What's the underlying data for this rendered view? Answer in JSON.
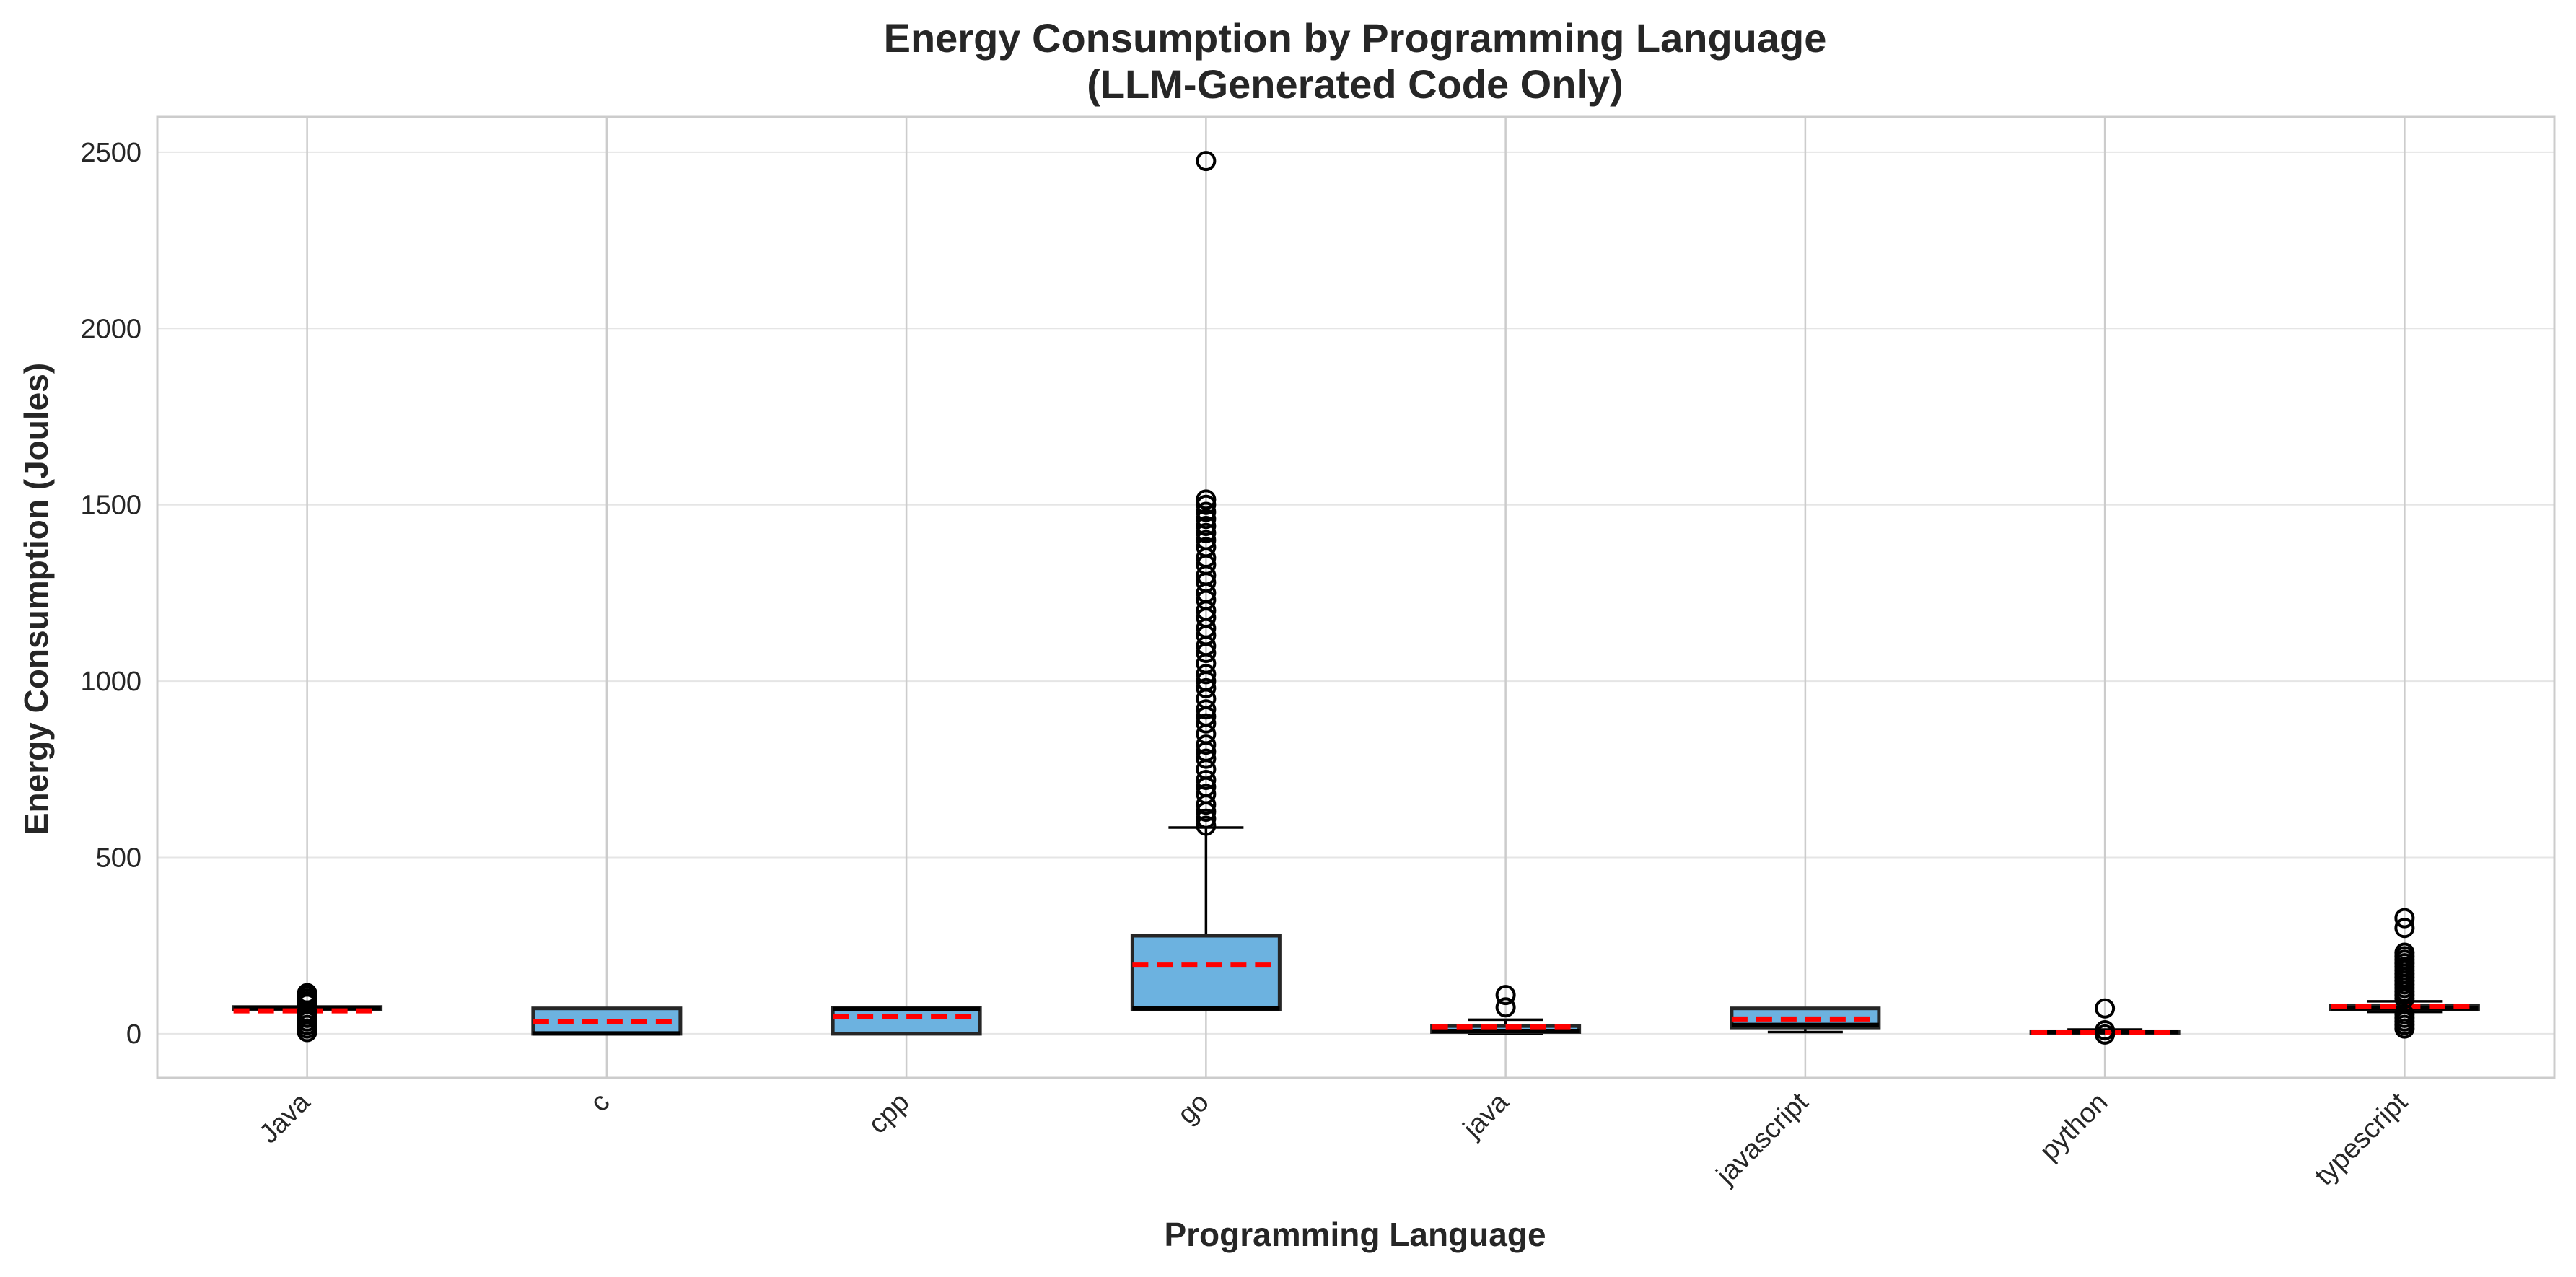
{
  "chart_data": {
    "type": "box",
    "title": [
      "Energy Consumption by Programming Language",
      "(LLM-Generated Code Only)"
    ],
    "xlabel": "Programming Language",
    "ylabel": "Energy Consumption (Joules)",
    "ylim": [
      -125,
      2600
    ],
    "yticks": [
      0,
      500,
      1000,
      1500,
      2000,
      2500
    ],
    "grid": true,
    "colors": {
      "box_fill": "#6cb2e0",
      "box_edge": "#262626",
      "mean_line": "#ff0000",
      "grid": "#e5e5e5",
      "vgrid": "#cccccc"
    },
    "categories": [
      "Java",
      "c",
      "cpp",
      "go",
      "java",
      "javascript",
      "python",
      "typescript"
    ],
    "boxes": [
      {
        "name": "Java",
        "q1": 70,
        "median": 73,
        "q3": 76,
        "mean": 65,
        "whisker_low": 70,
        "whisker_high": 76,
        "outliers": [
          5,
          15,
          25,
          35,
          45,
          55,
          62,
          85,
          92,
          100,
          108,
          115
        ]
      },
      {
        "name": "c",
        "q1": 0,
        "median": 1,
        "q3": 72,
        "mean": 35,
        "whisker_low": 0,
        "whisker_high": 72,
        "outliers": []
      },
      {
        "name": "cpp",
        "q1": 0,
        "median": 70,
        "q3": 73,
        "mean": 50,
        "whisker_low": 0,
        "whisker_high": 73,
        "outliers": []
      },
      {
        "name": "go",
        "q1": 70,
        "median": 72,
        "q3": 278,
        "mean": 195,
        "whisker_low": 70,
        "whisker_high": 585,
        "outliers": [
          590,
          610,
          630,
          650,
          680,
          700,
          720,
          750,
          780,
          800,
          820,
          850,
          880,
          900,
          920,
          950,
          980,
          1000,
          1020,
          1050,
          1080,
          1100,
          1130,
          1150,
          1180,
          1200,
          1230,
          1250,
          1280,
          1300,
          1330,
          1350,
          1380,
          1400,
          1420,
          1440,
          1460,
          1480,
          1500,
          1515,
          2475
        ]
      },
      {
        "name": "java",
        "q1": 5,
        "median": 8,
        "q3": 22,
        "mean": 20,
        "whisker_low": 0,
        "whisker_high": 40,
        "outliers": [
          75,
          110
        ]
      },
      {
        "name": "javascript",
        "q1": 18,
        "median": 25,
        "q3": 72,
        "mean": 42,
        "whisker_low": 5,
        "whisker_high": 72,
        "outliers": []
      },
      {
        "name": "python",
        "q1": 3,
        "median": 5,
        "q3": 7,
        "mean": 5,
        "whisker_low": 0,
        "whisker_high": 12,
        "outliers": [
          -2,
          10,
          72
        ]
      },
      {
        "name": "typescript",
        "q1": 70,
        "median": 72,
        "q3": 80,
        "mean": 78,
        "whisker_low": 62,
        "whisker_high": 92,
        "outliers": [
          15,
          25,
          35,
          45,
          55,
          100,
          110,
          120,
          130,
          140,
          150,
          160,
          170,
          180,
          190,
          200,
          210,
          220,
          230,
          300,
          328
        ]
      }
    ]
  }
}
